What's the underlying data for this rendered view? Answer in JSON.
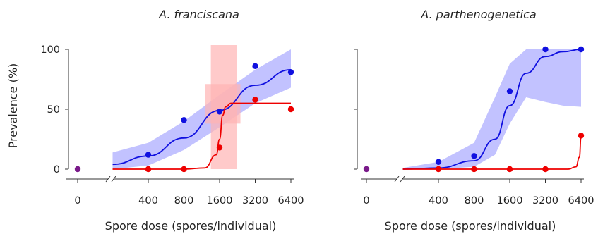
{
  "chart_data": [
    {
      "type": "line",
      "title": "A. franciscana",
      "xlabel": "Spore dose (spores/individual)",
      "ylabel": "Prevalence (%)",
      "x_scale": "log2 with axis break (0 shown separately)",
      "x_ticks": [
        "0",
        "400",
        "800",
        "1600",
        "3200",
        "6400"
      ],
      "y_ticks": [
        "0",
        "50",
        "100"
      ],
      "ylim": [
        0,
        100
      ],
      "grid": false,
      "colors": {
        "blue": "#1010e0",
        "red": "#ee0000",
        "purple": "#7a1a8a",
        "blue_band": "#b3b3ff",
        "red_band": "#ffb3b3"
      },
      "series": [
        {
          "color": "blue",
          "points": [
            {
              "x": 400,
              "y": 12
            },
            {
              "x": 800,
              "y": 41
            },
            {
              "x": 1600,
              "y": 48
            },
            {
              "x": 3200,
              "y": 86
            },
            {
              "x": 6400,
              "y": 81
            }
          ],
          "curve": {
            "x": [
              200,
              400,
              800,
              1600,
              3200,
              6400
            ],
            "y": [
              4,
              11,
              26,
              49,
              70,
              83
            ]
          },
          "band": {
            "lower": [
              0,
              3,
              16,
              35,
              55,
              68
            ],
            "upper": [
              14,
              22,
              40,
              62,
              83,
              100
            ]
          }
        },
        {
          "color": "red",
          "points": [
            {
              "x": 400,
              "y": 0
            },
            {
              "x": 800,
              "y": 0
            },
            {
              "x": 1600,
              "y": 18
            },
            {
              "x": 3200,
              "y": 58
            },
            {
              "x": 6400,
              "y": 50
            }
          ],
          "curve": {
            "x": [
              200,
              400,
              800,
              1200,
              1500,
              1600,
              1700,
              1800,
              2000,
              3200,
              6400
            ],
            "y": [
              0,
              0,
              0,
              1,
              12,
              25,
              45,
              52,
              55,
              55,
              55
            ]
          },
          "band": {
            "x_from": 1200,
            "x_to": 2400,
            "lower": 38,
            "upper": 71
          }
        }
      ],
      "zero_dose_point": {
        "x": 0,
        "y": 0,
        "color": "purple"
      }
    },
    {
      "type": "line",
      "title": "A. parthenogenetica",
      "xlabel": "Spore dose (spores/individual)",
      "x_scale": "log2 with axis break (0 shown separately)",
      "x_ticks": [
        "0",
        "400",
        "800",
        "1600",
        "3200",
        "6400"
      ],
      "ylim": [
        0,
        100
      ],
      "grid": false,
      "series": [
        {
          "color": "blue",
          "points": [
            {
              "x": 400,
              "y": 6
            },
            {
              "x": 800,
              "y": 11
            },
            {
              "x": 1600,
              "y": 65
            },
            {
              "x": 3200,
              "y": 100
            },
            {
              "x": 6400,
              "y": 100
            }
          ],
          "curve": {
            "x": [
              200,
              400,
              800,
              1200,
              1600,
              2200,
              3200,
              4500,
              6400
            ],
            "y": [
              0,
              1,
              7,
              25,
              53,
              80,
              94,
              98,
              100
            ]
          },
          "band": {
            "lower": [
              0,
              0,
              2,
              12,
              38,
              60,
              56,
              53,
              52
            ],
            "upper": [
              1,
              6,
              22,
              60,
              88,
              100,
              100,
              100,
              100
            ]
          }
        },
        {
          "color": "red",
          "points": [
            {
              "x": 400,
              "y": 0
            },
            {
              "x": 800,
              "y": 0
            },
            {
              "x": 1600,
              "y": 0
            },
            {
              "x": 3200,
              "y": 0
            },
            {
              "x": 6400,
              "y": 28
            }
          ],
          "curve": {
            "x": [
              200,
              1600,
              3200,
              5000,
              5800,
              6200,
              6400
            ],
            "y": [
              0,
              0,
              0,
              0,
              2,
              10,
              28
            ]
          }
        }
      ],
      "zero_dose_point": {
        "x": 0,
        "y": 0,
        "color": "purple"
      }
    }
  ]
}
